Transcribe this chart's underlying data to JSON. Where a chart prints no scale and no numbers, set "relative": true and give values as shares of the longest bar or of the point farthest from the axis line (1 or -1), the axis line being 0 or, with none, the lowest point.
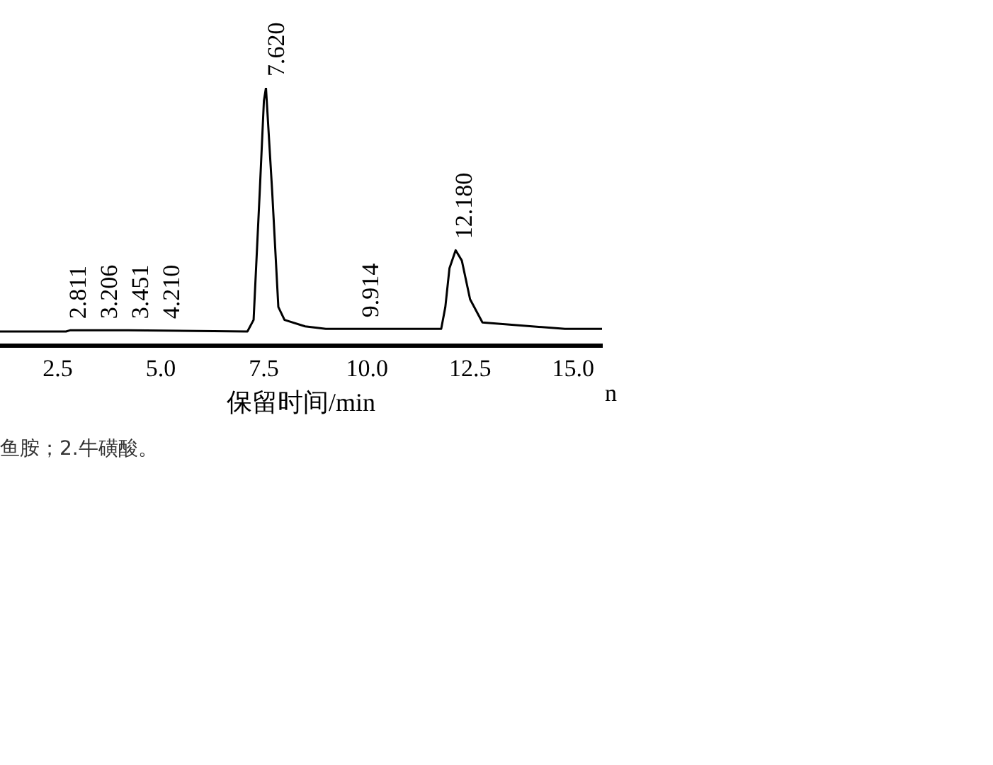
{
  "chart_data": {
    "type": "line",
    "xlabel": "保留时间/min",
    "relative": true,
    "color": "#000000",
    "marker": "none",
    "grid": false,
    "legend": false,
    "xlim": [
      1.1,
      15.7
    ],
    "xticks": [
      {
        "value": 2.5,
        "label": "2.5"
      },
      {
        "value": 5,
        "label": "5.0"
      },
      {
        "value": 7.5,
        "label": "7.5"
      },
      {
        "value": 10,
        "label": "10.0"
      },
      {
        "value": 12.5,
        "label": "12.5"
      },
      {
        "value": 15,
        "label": "15.0"
      }
    ],
    "x": [
      1.1,
      2.7,
      2.811,
      3.206,
      3.451,
      4.21,
      7.1,
      7.25,
      7.4,
      7.5,
      7.55,
      7.7,
      7.85,
      8.0,
      8.5,
      9.0,
      11.8,
      11.9,
      12.0,
      12.15,
      12.3,
      12.5,
      12.8,
      14.8,
      15.7
    ],
    "values": [
      0.055,
      0.055,
      0.06,
      0.06,
      0.06,
      0.06,
      0.055,
      0.1,
      0.6,
      0.95,
      1,
      0.6,
      0.15,
      0.1,
      0.075,
      0.065,
      0.065,
      0.15,
      0.3,
      0.37,
      0.33,
      0.18,
      0.09,
      0.065,
      0.065
    ],
    "annotations": [
      {
        "text": "2.811",
        "x": 2.811,
        "y": 0.06
      },
      {
        "text": "3.206",
        "x": 3.206,
        "y": 0.06
      },
      {
        "text": "3.451",
        "x": 3.451,
        "y": 0.06
      },
      {
        "text": "4.210",
        "x": 4.21,
        "y": 0.06
      },
      {
        "text": "7.620",
        "x": 7.62,
        "y": 1
      },
      {
        "text": "9.914",
        "x": 9.914,
        "y": 0.065
      },
      {
        "text": "12.180",
        "x": 12.18,
        "y": 0.37
      },
      "n",
      "鱼胺；2.牛磺酸。"
    ]
  }
}
